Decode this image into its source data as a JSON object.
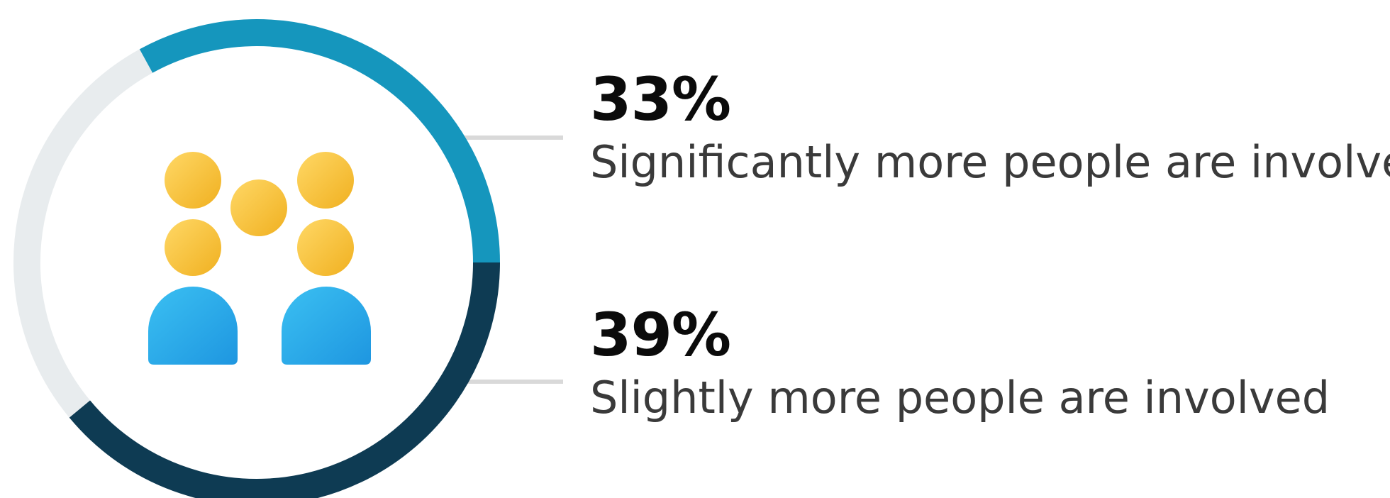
{
  "chart_data": {
    "type": "donut",
    "title": "",
    "slices": [
      {
        "label": "Significantly more people are involved",
        "display_value": "33%",
        "value": 33,
        "color": "#1596bd"
      },
      {
        "label": "Slightly more people are involved",
        "display_value": "39%",
        "value": 39,
        "color": "#0e3b53"
      },
      {
        "label": "",
        "value": 28,
        "color": "#e8ecee"
      }
    ],
    "center_icon": "group-of-people-icon",
    "legend_position": "right",
    "leader_line_color": "#d9d9d9"
  },
  "colors": {
    "person_head": "#f7bf3a",
    "person_body": "#29a9ea"
  }
}
